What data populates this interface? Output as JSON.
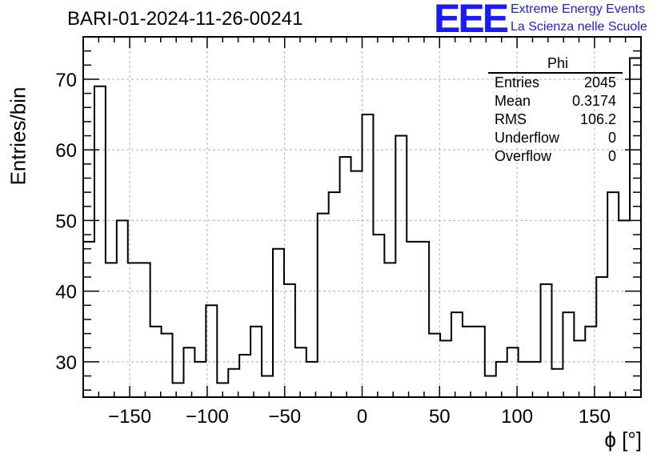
{
  "chart_data": {
    "type": "histogram",
    "title": "BARI-01-2024-11-26-00241",
    "xlabel": "ϕ [°]",
    "ylabel": "Entries/bin",
    "xlim": [
      -180,
      180
    ],
    "ylim": [
      25,
      76
    ],
    "bin_width": 7.2,
    "grid": true,
    "x_ticks": [
      -150,
      -100,
      -50,
      0,
      50,
      100,
      150
    ],
    "x_tick_labels": [
      "−150",
      "−100",
      "−50",
      "0",
      "50",
      "100",
      "150"
    ],
    "y_ticks": [
      30,
      40,
      50,
      60,
      70
    ],
    "y_tick_labels": [
      "30",
      "40",
      "50",
      "60",
      "70"
    ],
    "values": [
      47,
      69,
      44,
      50,
      44,
      44,
      35,
      34,
      27,
      32,
      30,
      38,
      27,
      29,
      31,
      35,
      28,
      46,
      41,
      32,
      30,
      51,
      54,
      59,
      57,
      65,
      48,
      44,
      62,
      47,
      47,
      34,
      33,
      37,
      35,
      35,
      28,
      30,
      32,
      30,
      30,
      41,
      29,
      37,
      33,
      35,
      42,
      54,
      50,
      73
    ]
  },
  "stats_box": {
    "name": "Phi",
    "rows": [
      {
        "label": "Entries",
        "value": "2045"
      },
      {
        "label": "Mean",
        "value": "0.3174"
      },
      {
        "label": "RMS",
        "value": "106.2"
      },
      {
        "label": "Underflow",
        "value": "0"
      },
      {
        "label": "Overflow",
        "value": "0"
      }
    ]
  },
  "logo": {
    "mark": "EEE",
    "line1": "Extreme Energy Events",
    "line2": "La Scienza nelle Scuole",
    "color": "#1a1aff"
  }
}
